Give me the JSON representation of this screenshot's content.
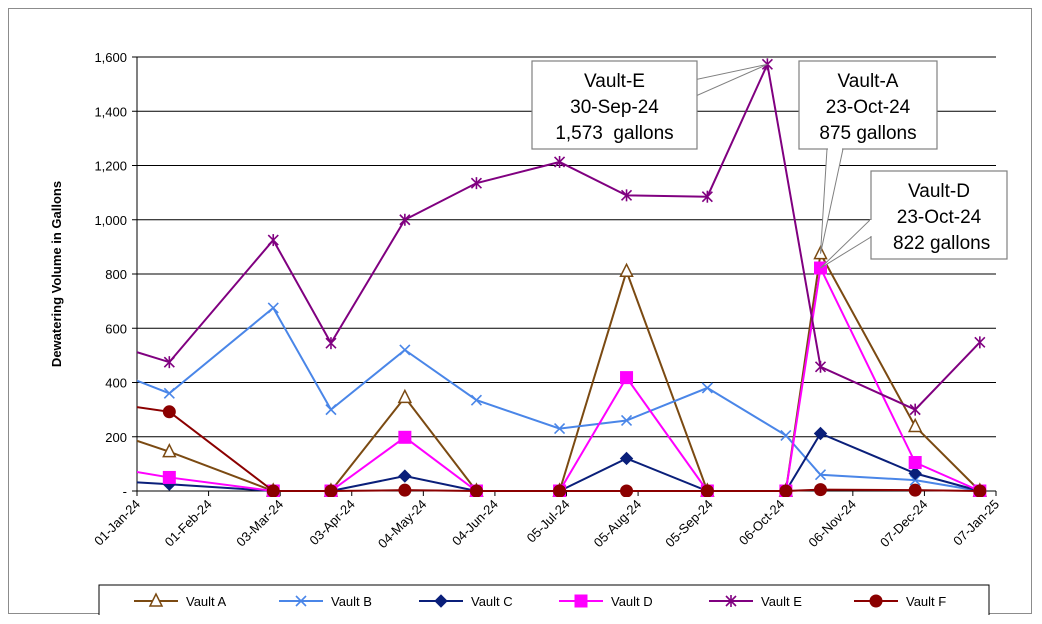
{
  "chart_data": {
    "type": "line",
    "ylabel": "Dewatering Volume in Gallons",
    "xlabel": "",
    "ylim": [
      0,
      1600
    ],
    "yticks": [
      0,
      200,
      400,
      600,
      800,
      1000,
      1200,
      1400,
      1600
    ],
    "ytick_labels": [
      "-",
      "200",
      "400",
      "600",
      "800",
      "1,000",
      "1,200",
      "1,400",
      "1,600"
    ],
    "xlim": [
      "2024-01-01",
      "2025-01-07"
    ],
    "xtick_dates": [
      "2024-01-01",
      "2024-02-01",
      "2024-03-03",
      "2024-04-03",
      "2024-05-04",
      "2024-06-04",
      "2024-07-05",
      "2024-08-05",
      "2024-09-05",
      "2024-10-06",
      "2024-11-06",
      "2024-12-07",
      "2025-01-07"
    ],
    "xtick_labels": [
      "01-Jan-24",
      "01-Feb-24",
      "03-Mar-24",
      "03-Apr-24",
      "04-May-24",
      "04-Jun-24",
      "05-Jul-24",
      "05-Aug-24",
      "05-Sep-24",
      "06-Oct-24",
      "06-Nov-24",
      "07-Dec-24",
      "07-Jan-25"
    ],
    "grid": "horizontal",
    "legend_position": "bottom",
    "series": [
      {
        "name": "Vault A",
        "color": "#7B4A12",
        "marker": "triangle-open",
        "points": [
          [
            "2023-12-25",
            205
          ],
          [
            "2024-01-15",
            145
          ],
          [
            "2024-02-29",
            0
          ],
          [
            "2024-03-25",
            0
          ],
          [
            "2024-04-26",
            345
          ],
          [
            "2024-05-27",
            0
          ],
          [
            "2024-07-02",
            0
          ],
          [
            "2024-07-31",
            810
          ],
          [
            "2024-09-04",
            0
          ],
          [
            "2024-10-08",
            0
          ],
          [
            "2024-10-23",
            875
          ],
          [
            "2024-12-03",
            238
          ],
          [
            "2024-12-31",
            0
          ]
        ]
      },
      {
        "name": "Vault B",
        "color": "#4A86E8",
        "marker": "x",
        "points": [
          [
            "2023-12-25",
            430
          ],
          [
            "2024-01-15",
            360
          ],
          [
            "2024-02-29",
            675
          ],
          [
            "2024-03-25",
            300
          ],
          [
            "2024-04-26",
            520
          ],
          [
            "2024-05-27",
            335
          ],
          [
            "2024-07-02",
            230
          ],
          [
            "2024-07-31",
            260
          ],
          [
            "2024-09-04",
            380
          ],
          [
            "2024-10-08",
            205
          ],
          [
            "2024-10-23",
            60
          ],
          [
            "2024-12-03",
            40
          ],
          [
            "2024-12-31",
            0
          ]
        ]
      },
      {
        "name": "Vault C",
        "color": "#0A1F7A",
        "marker": "diamond",
        "points": [
          [
            "2023-12-25",
            35
          ],
          [
            "2024-01-15",
            25
          ],
          [
            "2024-02-29",
            0
          ],
          [
            "2024-03-25",
            0
          ],
          [
            "2024-04-26",
            55
          ],
          [
            "2024-05-27",
            0
          ],
          [
            "2024-07-02",
            0
          ],
          [
            "2024-07-31",
            120
          ],
          [
            "2024-09-04",
            0
          ],
          [
            "2024-10-08",
            0
          ],
          [
            "2024-10-23",
            212
          ],
          [
            "2024-12-03",
            65
          ],
          [
            "2024-12-31",
            0
          ]
        ]
      },
      {
        "name": "Vault D",
        "color": "#FF00FF",
        "marker": "square",
        "points": [
          [
            "2023-12-25",
            80
          ],
          [
            "2024-01-15",
            50
          ],
          [
            "2024-02-29",
            0
          ],
          [
            "2024-03-25",
            0
          ],
          [
            "2024-04-26",
            198
          ],
          [
            "2024-05-27",
            0
          ],
          [
            "2024-07-02",
            0
          ],
          [
            "2024-07-31",
            418
          ],
          [
            "2024-09-04",
            0
          ],
          [
            "2024-10-08",
            0
          ],
          [
            "2024-10-23",
            822
          ],
          [
            "2024-12-03",
            105
          ],
          [
            "2024-12-31",
            0
          ]
        ]
      },
      {
        "name": "Vault E",
        "color": "#800080",
        "marker": "asterisk",
        "points": [
          [
            "2023-12-25",
            530
          ],
          [
            "2024-01-15",
            475
          ],
          [
            "2024-02-29",
            925
          ],
          [
            "2024-03-25",
            545
          ],
          [
            "2024-04-26",
            1000
          ],
          [
            "2024-05-27",
            1135
          ],
          [
            "2024-07-02",
            1213
          ],
          [
            "2024-07-31",
            1090
          ],
          [
            "2024-09-04",
            1085
          ],
          [
            "2024-09-30",
            1573
          ],
          [
            "2024-10-23",
            458
          ],
          [
            "2024-12-03",
            300
          ],
          [
            "2024-12-31",
            548
          ]
        ]
      },
      {
        "name": "Vault F",
        "color": "#8B0000",
        "marker": "circle",
        "points": [
          [
            "2023-12-25",
            318
          ],
          [
            "2024-01-15",
            292
          ],
          [
            "2024-02-29",
            0
          ],
          [
            "2024-03-25",
            0
          ],
          [
            "2024-04-26",
            3
          ],
          [
            "2024-05-27",
            0
          ],
          [
            "2024-07-02",
            0
          ],
          [
            "2024-07-31",
            0
          ],
          [
            "2024-09-04",
            0
          ],
          [
            "2024-10-08",
            0
          ],
          [
            "2024-10-23",
            5
          ],
          [
            "2024-12-03",
            3
          ],
          [
            "2024-12-31",
            0
          ]
        ]
      }
    ],
    "annotations": [
      {
        "lines": [
          "Vault-E",
          "30-Sep-24",
          "1,573  gallons"
        ],
        "target": {
          "date": "2024-09-30",
          "value": 1573
        }
      },
      {
        "lines": [
          "Vault-A",
          "23-Oct-24",
          "875 gallons"
        ],
        "target": {
          "date": "2024-10-23",
          "value": 875
        }
      },
      {
        "lines": [
          "Vault-D",
          "23-Oct-24",
          " 822 gallons"
        ],
        "target": {
          "date": "2024-10-23",
          "value": 822
        }
      }
    ]
  }
}
